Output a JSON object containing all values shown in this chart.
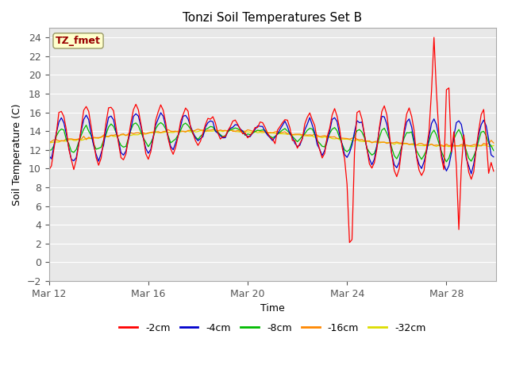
{
  "title": "Tonzi Soil Temperatures Set B",
  "xlabel": "Time",
  "ylabel": "Soil Temperature (C)",
  "ylim": [
    -2,
    25
  ],
  "yticks": [
    -2,
    0,
    2,
    4,
    6,
    8,
    10,
    12,
    14,
    16,
    18,
    20,
    22,
    24
  ],
  "xlim_days": [
    0,
    18
  ],
  "xtick_positions": [
    0,
    4,
    8,
    12,
    16
  ],
  "xtick_labels": [
    "Mar 12",
    "Mar 16",
    "Mar 20",
    "Mar 24",
    "Mar 28"
  ],
  "bg_color": "#e8e8e8",
  "fig_color": "#ffffff",
  "series_colors": [
    "#ff0000",
    "#0000cc",
    "#00bb00",
    "#ff8800",
    "#dddd00"
  ],
  "series_labels": [
    "-2cm",
    "-4cm",
    "-8cm",
    "-16cm",
    "-32cm"
  ],
  "annotation_label": "TZ_fmet",
  "annotation_bg": "#ffffcc",
  "annotation_border": "#999966"
}
